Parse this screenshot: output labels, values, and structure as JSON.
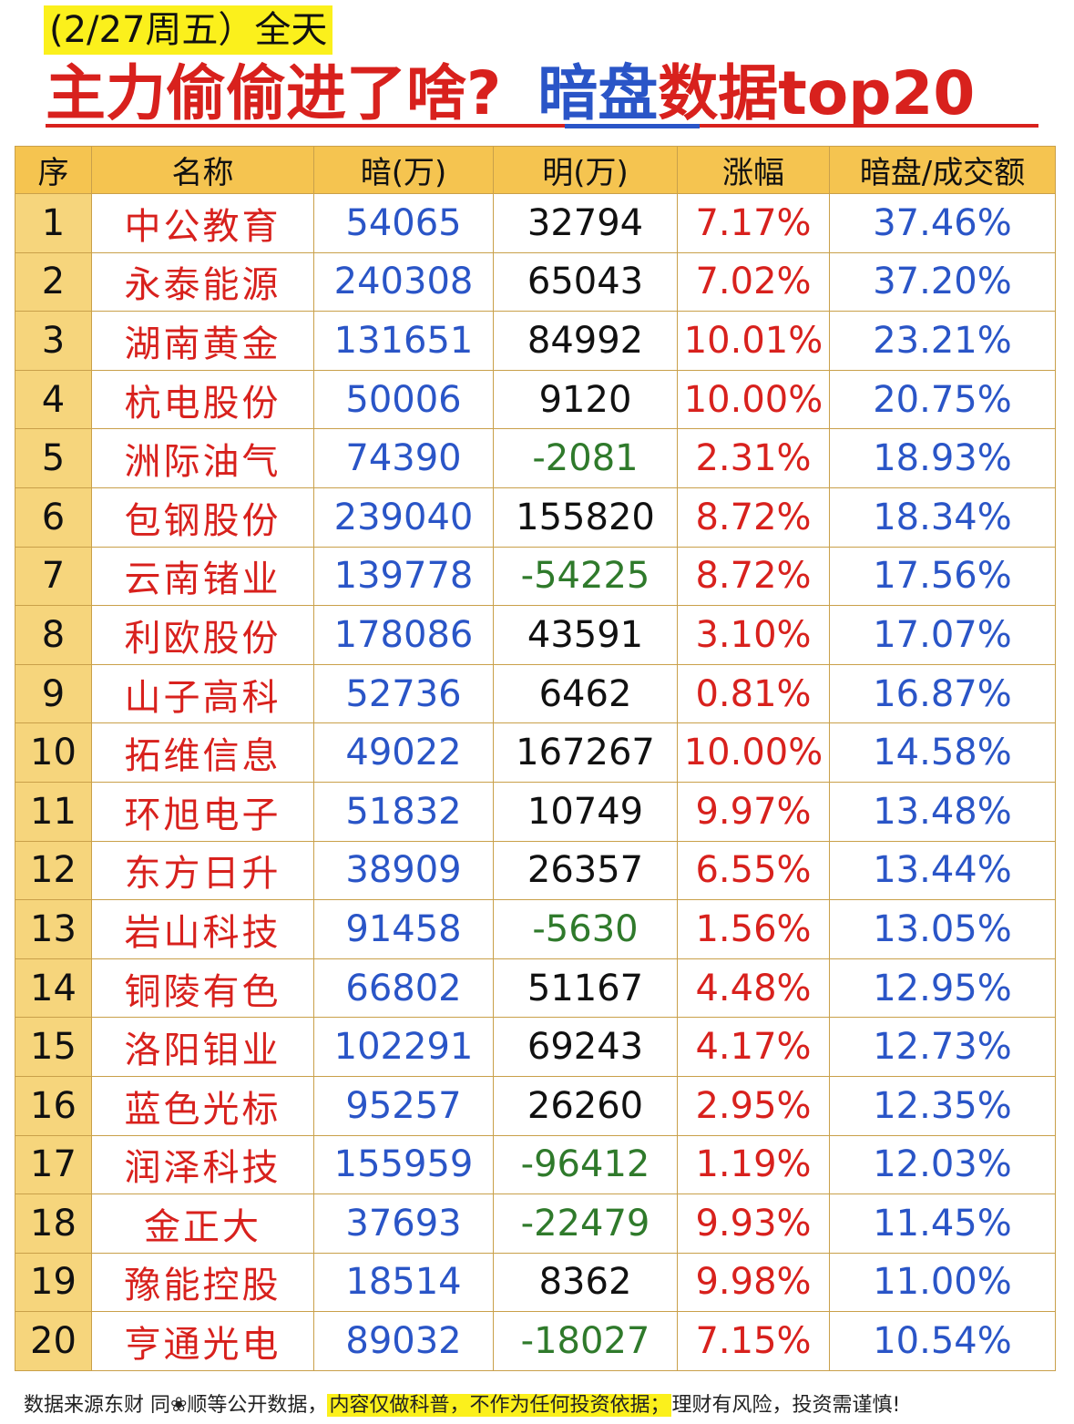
{
  "header": {
    "date_label": "(2/27周五）全天",
    "headline_part1": "主力偷偷进了啥?",
    "headline_part2": "暗盘",
    "headline_part3": "数据top20"
  },
  "table": {
    "columns": [
      "序",
      "名称",
      "暗(万)",
      "明(万)",
      "涨幅",
      "暗盘/成交额"
    ],
    "rows": [
      {
        "idx": "1",
        "name": "中公教育",
        "an": "54065",
        "ming": "32794",
        "chg": "7.17%",
        "ratio": "37.46%"
      },
      {
        "idx": "2",
        "name": "永泰能源",
        "an": "240308",
        "ming": "65043",
        "chg": "7.02%",
        "ratio": "37.20%"
      },
      {
        "idx": "3",
        "name": "湖南黄金",
        "an": "131651",
        "ming": "84992",
        "chg": "10.01%",
        "ratio": "23.21%"
      },
      {
        "idx": "4",
        "name": "杭电股份",
        "an": "50006",
        "ming": "9120",
        "chg": "10.00%",
        "ratio": "20.75%"
      },
      {
        "idx": "5",
        "name": "洲际油气",
        "an": "74390",
        "ming": "-2081",
        "chg": "2.31%",
        "ratio": "18.93%"
      },
      {
        "idx": "6",
        "name": "包钢股份",
        "an": "239040",
        "ming": "155820",
        "chg": "8.72%",
        "ratio": "18.34%"
      },
      {
        "idx": "7",
        "name": "云南锗业",
        "an": "139778",
        "ming": "-54225",
        "chg": "8.72%",
        "ratio": "17.56%"
      },
      {
        "idx": "8",
        "name": "利欧股份",
        "an": "178086",
        "ming": "43591",
        "chg": "3.10%",
        "ratio": "17.07%"
      },
      {
        "idx": "9",
        "name": "山子高科",
        "an": "52736",
        "ming": "6462",
        "chg": "0.81%",
        "ratio": "16.87%"
      },
      {
        "idx": "10",
        "name": "拓维信息",
        "an": "49022",
        "ming": "167267",
        "chg": "10.00%",
        "ratio": "14.58%"
      },
      {
        "idx": "11",
        "name": "环旭电子",
        "an": "51832",
        "ming": "10749",
        "chg": "9.97%",
        "ratio": "13.48%"
      },
      {
        "idx": "12",
        "name": "东方日升",
        "an": "38909",
        "ming": "26357",
        "chg": "6.55%",
        "ratio": "13.44%"
      },
      {
        "idx": "13",
        "name": "岩山科技",
        "an": "91458",
        "ming": "-5630",
        "chg": "1.56%",
        "ratio": "13.05%"
      },
      {
        "idx": "14",
        "name": "铜陵有色",
        "an": "66802",
        "ming": "51167",
        "chg": "4.48%",
        "ratio": "12.95%"
      },
      {
        "idx": "15",
        "name": "洛阳钼业",
        "an": "102291",
        "ming": "69243",
        "chg": "4.17%",
        "ratio": "12.73%"
      },
      {
        "idx": "16",
        "name": "蓝色光标",
        "an": "95257",
        "ming": "26260",
        "chg": "2.95%",
        "ratio": "12.35%"
      },
      {
        "idx": "17",
        "name": "润泽科技",
        "an": "155959",
        "ming": "-96412",
        "chg": "1.19%",
        "ratio": "12.03%"
      },
      {
        "idx": "18",
        "name": "金正大",
        "an": "37693",
        "ming": "-22479",
        "chg": "9.93%",
        "ratio": "11.45%"
      },
      {
        "idx": "19",
        "name": "豫能控股",
        "an": "18514",
        "ming": "8362",
        "chg": "9.98%",
        "ratio": "11.00%"
      },
      {
        "idx": "20",
        "name": "亨通光电",
        "an": "89032",
        "ming": "-18027",
        "chg": "7.15%",
        "ratio": "10.54%"
      }
    ]
  },
  "footer": {
    "source": "数据来源东财 同❀顺等公开数据，",
    "disclaimer": "内容仅做科普，不作为任何投资依据；",
    "risk": "理财有风险，投资需谨慎!"
  }
}
